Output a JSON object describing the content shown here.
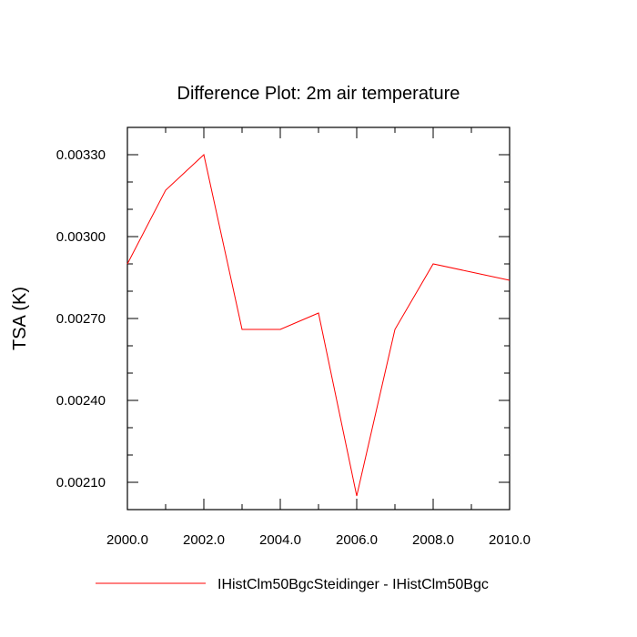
{
  "chart_data": {
    "type": "line",
    "title": "Difference Plot: 2m air temperature",
    "xlabel": "",
    "ylabel": "TSA  (K)",
    "x": [
      2000,
      2001,
      2002,
      2003,
      2004,
      2005,
      2006,
      2007,
      2008,
      2009,
      2010
    ],
    "series": [
      {
        "name": "IHistClm50BgcSteidinger - IHistClm50Bgc",
        "color": "#ff0000",
        "values": [
          0.0029,
          0.00317,
          0.0033,
          0.00266,
          0.00266,
          0.00272,
          0.00205,
          0.00266,
          0.0029,
          0.00287,
          0.00284
        ]
      }
    ],
    "xlim": [
      2000,
      2010
    ],
    "ylim": [
      0.002,
      0.0034
    ],
    "x_ticks": [
      2000,
      2002,
      2004,
      2006,
      2008,
      2010
    ],
    "x_tick_labels": [
      "2000.0",
      "2002.0",
      "2004.0",
      "2006.0",
      "2008.0",
      "2010.0"
    ],
    "x_minor_ticks": [
      2001,
      2003,
      2005,
      2007,
      2009
    ],
    "y_ticks": [
      0.0021,
      0.0024,
      0.0027,
      0.003,
      0.0033
    ],
    "y_tick_labels": [
      "0.00210",
      "0.00240",
      "0.00270",
      "0.00300",
      "0.00330"
    ],
    "y_minor_ticks": [
      0.002,
      0.0022,
      0.0023,
      0.0025,
      0.0026,
      0.0028,
      0.0029,
      0.0031,
      0.0032,
      0.0034
    ],
    "grid": false,
    "legend_position": "bottom"
  }
}
